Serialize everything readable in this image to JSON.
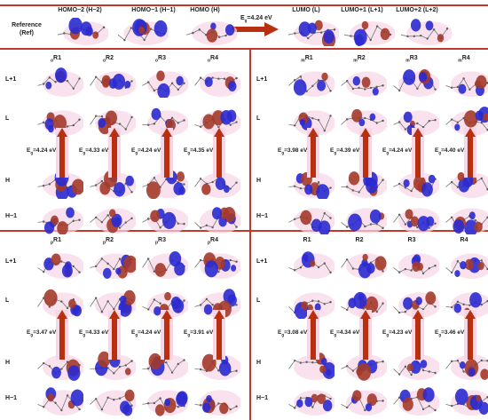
{
  "header": {
    "columns": [
      "HOMO−2 (H−2)",
      "HOMO−1 (H−1)",
      "HOMO (H)",
      "LUMO (L)",
      "LUMO+1 (L+1)",
      "LUMO+2 (L+2)"
    ],
    "ref_label_line1": "Reference",
    "ref_label_line2": "(Ref)",
    "ref_gap": "E",
    "ref_gap_sub": "g",
    "ref_gap_val": "=4.24 eV"
  },
  "row_labels": [
    "L+1",
    "L",
    "H",
    "H−1"
  ],
  "panels": [
    {
      "prefix": "o",
      "titles": [
        "R1",
        "R2",
        "R3",
        "R4"
      ],
      "gaps": [
        "=4.24 eV",
        "=4.33 eV",
        "=4.24 eV",
        "=4.35 eV"
      ]
    },
    {
      "prefix": "m",
      "titles": [
        "R1",
        "R2",
        "R3",
        "R4"
      ],
      "gaps": [
        "=3.98 eV",
        "=4.39 eV",
        "=4.24 eV",
        "=4.40 eV"
      ]
    },
    {
      "prefix": "p",
      "titles": [
        "R1",
        "R2",
        "R3",
        "R4"
      ],
      "gaps": [
        "=3.47 eV",
        "=4.33 eV",
        "=4.24 eV",
        "=3.91 eV"
      ]
    },
    {
      "prefix": "",
      "titles": [
        "R1",
        "R2",
        "R3",
        "R4"
      ],
      "gaps": [
        "=3.08 eV",
        "=4.34 eV",
        "=4.23 eV",
        "=3.46 eV"
      ]
    }
  ],
  "colors": {
    "lobe_blue": "#2a2ad0",
    "lobe_red": "#a33a2a",
    "arrow": "#b8300f",
    "rule": "#c0392b",
    "glow": "#f7d6e6"
  }
}
